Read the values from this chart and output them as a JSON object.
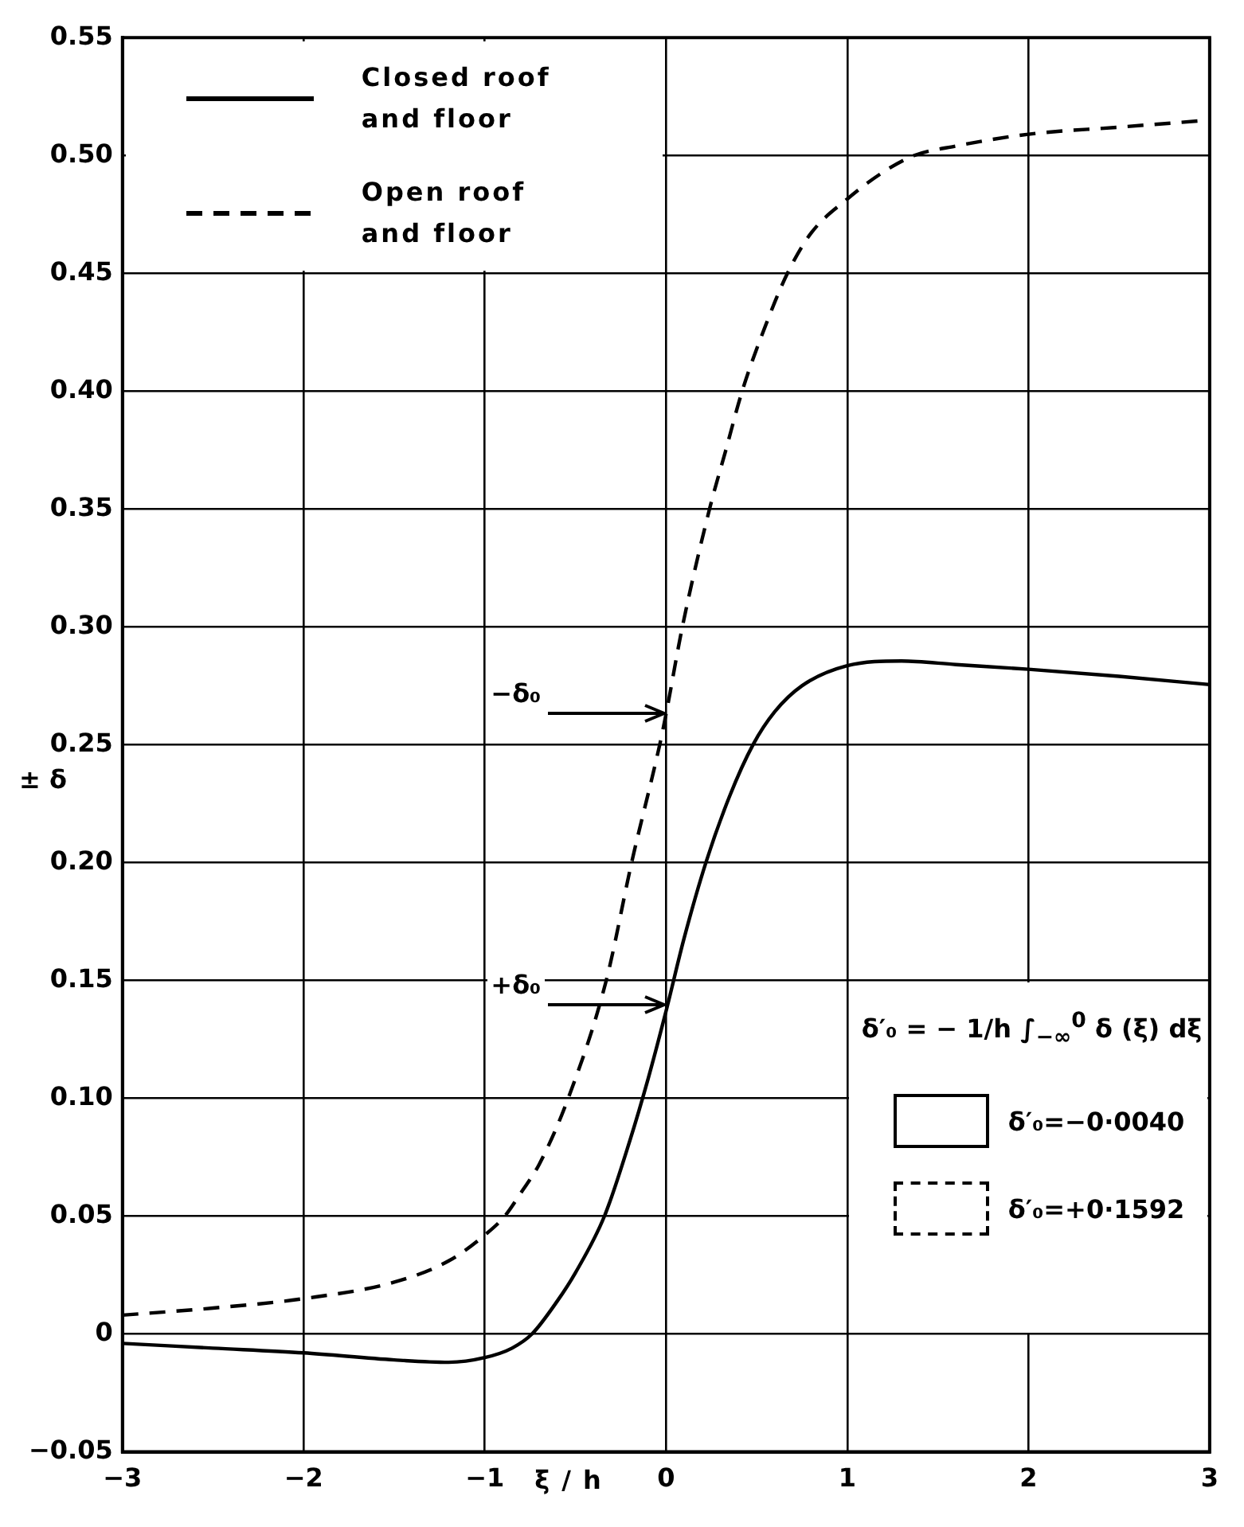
{
  "chart_data": {
    "type": "line",
    "xlabel": "ξ / h",
    "ylabel": "± δ",
    "xlim": [
      -3,
      3
    ],
    "xticks": [
      {
        "value": -3,
        "label": "−3"
      },
      {
        "value": -2,
        "label": "−2"
      },
      {
        "value": -1,
        "label": "−1"
      },
      0,
      1,
      2,
      3
    ],
    "ylim": [
      -0.05,
      0.55
    ],
    "yticks": [
      {
        "value": -0.05,
        "label": "−0.05"
      },
      0,
      0.05,
      {
        "value": 0.1,
        "label": "0.10"
      },
      0.15,
      {
        "value": 0.2,
        "label": "0.20"
      },
      0.25,
      {
        "value": 0.3,
        "label": "0.30"
      },
      0.35,
      {
        "value": 0.4,
        "label": "0.40"
      },
      0.45,
      {
        "value": 0.5,
        "label": "0.50"
      },
      0.55
    ],
    "grid": true,
    "legend": "top left",
    "marker": "none",
    "series": [
      {
        "name": "Closed roof and floor",
        "color": "#000000",
        "line_style": "solid",
        "x": [
          -3,
          -2.5,
          -2,
          -1.5,
          -1.2,
          -1,
          -0.85,
          -0.74,
          -0.6,
          -0.5,
          -0.34,
          -0.2,
          -0.1,
          0,
          0.1,
          0.22,
          0.35,
          0.48,
          0.6,
          0.75,
          1,
          1.3,
          1.6,
          2,
          2.5,
          3
        ],
        "values": [
          -0.004,
          -0.006,
          -0.008,
          -0.011,
          -0.012,
          -0.01,
          -0.006,
          0,
          0.014,
          0.026,
          0.05,
          0.082,
          0.108,
          0.137,
          0.168,
          0.2,
          0.228,
          0.25,
          0.264,
          0.275,
          0.2835,
          0.2855,
          0.284,
          0.282,
          0.279,
          0.2755
        ]
      },
      {
        "name": "Open roof and floor",
        "color": "#000000",
        "line_style": "dashed",
        "x": [
          -3,
          -2.5,
          -2,
          -1.5,
          -1.2,
          -1,
          -0.89,
          -0.8,
          -0.7,
          -0.54,
          -0.33,
          -0.19,
          -0.035,
          0,
          0.09,
          0.24,
          0.33,
          0.42,
          0.55,
          0.67,
          0.8,
          1,
          1.2,
          1.37,
          1.6,
          2,
          2.5,
          3
        ],
        "values": [
          0.008,
          0.011,
          0.015,
          0.022,
          0.031,
          0.042,
          0.05,
          0.06,
          0.072,
          0.1,
          0.15,
          0.2,
          0.25,
          0.263,
          0.3,
          0.35,
          0.375,
          0.4,
          0.428,
          0.45,
          0.467,
          0.4815,
          0.493,
          0.5,
          0.504,
          0.509,
          0.512,
          0.515
        ]
      }
    ],
    "annotations": [
      {
        "text": "−δ₀",
        "x": 0,
        "y": 0.263
      },
      {
        "text": "+δ₀",
        "x": 0,
        "y": 0.14
      },
      "δ′₀ = − 1/h ∫$_{−∞}$$^{0}$ δ (ξ) dξ",
      "δ′₀=−0·0040",
      "δ′₀=+0·1592"
    ]
  }
}
